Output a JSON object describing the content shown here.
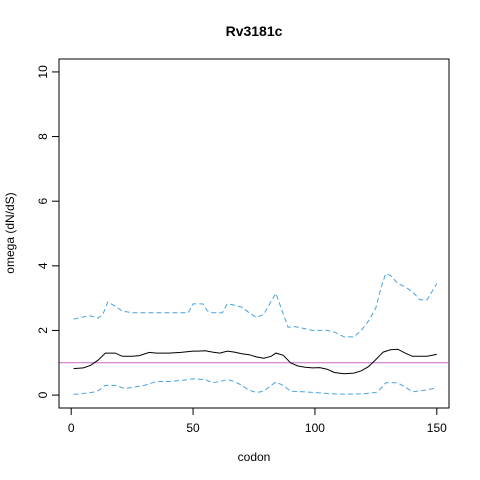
{
  "chart_data": {
    "type": "line",
    "title": "Rv3181c",
    "xlabel": "codon",
    "ylabel": "omega (dN/dS)",
    "xlim": [
      -5,
      155
    ],
    "ylim": [
      -0.4,
      10.4
    ],
    "x_ticks": [
      0,
      50,
      100,
      150
    ],
    "y_ticks": [
      0,
      2,
      4,
      6,
      8,
      10
    ],
    "grid": false,
    "reference_line": {
      "y": 1.0,
      "color": "#c768c7"
    },
    "series": [
      {
        "style": "solid",
        "color": "#000000",
        "x": [
          1,
          5,
          8,
          11,
          14,
          18,
          21,
          25,
          28,
          32,
          35,
          40,
          45,
          50,
          52,
          55,
          58,
          61,
          64,
          67,
          70,
          73,
          76,
          79,
          82,
          84,
          87,
          90,
          93,
          96,
          99,
          102,
          105,
          108,
          112,
          116,
          119,
          122,
          125,
          128,
          131,
          134,
          137,
          140,
          143,
          146,
          150
        ],
        "y": [
          0.82,
          0.84,
          0.92,
          1.08,
          1.3,
          1.3,
          1.2,
          1.2,
          1.22,
          1.32,
          1.3,
          1.3,
          1.32,
          1.36,
          1.36,
          1.37,
          1.33,
          1.3,
          1.36,
          1.33,
          1.28,
          1.25,
          1.18,
          1.14,
          1.2,
          1.3,
          1.23,
          1.0,
          0.9,
          0.86,
          0.84,
          0.85,
          0.8,
          0.7,
          0.66,
          0.68,
          0.75,
          0.88,
          1.1,
          1.33,
          1.4,
          1.42,
          1.3,
          1.2,
          1.2,
          1.2,
          1.26
        ]
      },
      {
        "style": "dashed",
        "color": "#4aa3df",
        "x": [
          1,
          5,
          8,
          11,
          13,
          15,
          18,
          21,
          25,
          30,
          35,
          40,
          45,
          48,
          50,
          54,
          56,
          58,
          62,
          64,
          66,
          70,
          73,
          76,
          79,
          82,
          84,
          87,
          89,
          92,
          96,
          99,
          102,
          105,
          108,
          112,
          116,
          119,
          122,
          125,
          127,
          129,
          131,
          134,
          137,
          140,
          143,
          146,
          148,
          150
        ],
        "y": [
          2.35,
          2.42,
          2.45,
          2.38,
          2.5,
          2.88,
          2.75,
          2.6,
          2.55,
          2.55,
          2.55,
          2.55,
          2.55,
          2.55,
          2.82,
          2.82,
          2.6,
          2.55,
          2.55,
          2.82,
          2.8,
          2.72,
          2.55,
          2.4,
          2.5,
          2.9,
          3.15,
          2.5,
          2.1,
          2.12,
          2.05,
          2.0,
          2.0,
          2.0,
          1.95,
          1.8,
          1.8,
          2.0,
          2.3,
          2.7,
          3.3,
          3.75,
          3.7,
          3.45,
          3.35,
          3.2,
          2.95,
          2.95,
          3.2,
          3.45
        ]
      },
      {
        "style": "dashed",
        "color": "#4aa3df",
        "x": [
          1,
          5,
          10,
          12,
          14,
          18,
          22,
          26,
          30,
          35,
          40,
          45,
          50,
          55,
          58,
          61,
          64,
          67,
          70,
          73,
          76,
          79,
          82,
          84,
          87,
          90,
          95,
          100,
          105,
          110,
          115,
          120,
          125,
          127,
          129,
          134,
          137,
          140,
          145,
          150
        ],
        "y": [
          0.02,
          0.05,
          0.1,
          0.18,
          0.3,
          0.3,
          0.2,
          0.25,
          0.3,
          0.42,
          0.42,
          0.45,
          0.5,
          0.48,
          0.38,
          0.42,
          0.48,
          0.42,
          0.3,
          0.15,
          0.08,
          0.12,
          0.3,
          0.4,
          0.3,
          0.12,
          0.1,
          0.08,
          0.05,
          0.03,
          0.03,
          0.04,
          0.08,
          0.2,
          0.38,
          0.38,
          0.25,
          0.1,
          0.15,
          0.22
        ]
      }
    ]
  }
}
